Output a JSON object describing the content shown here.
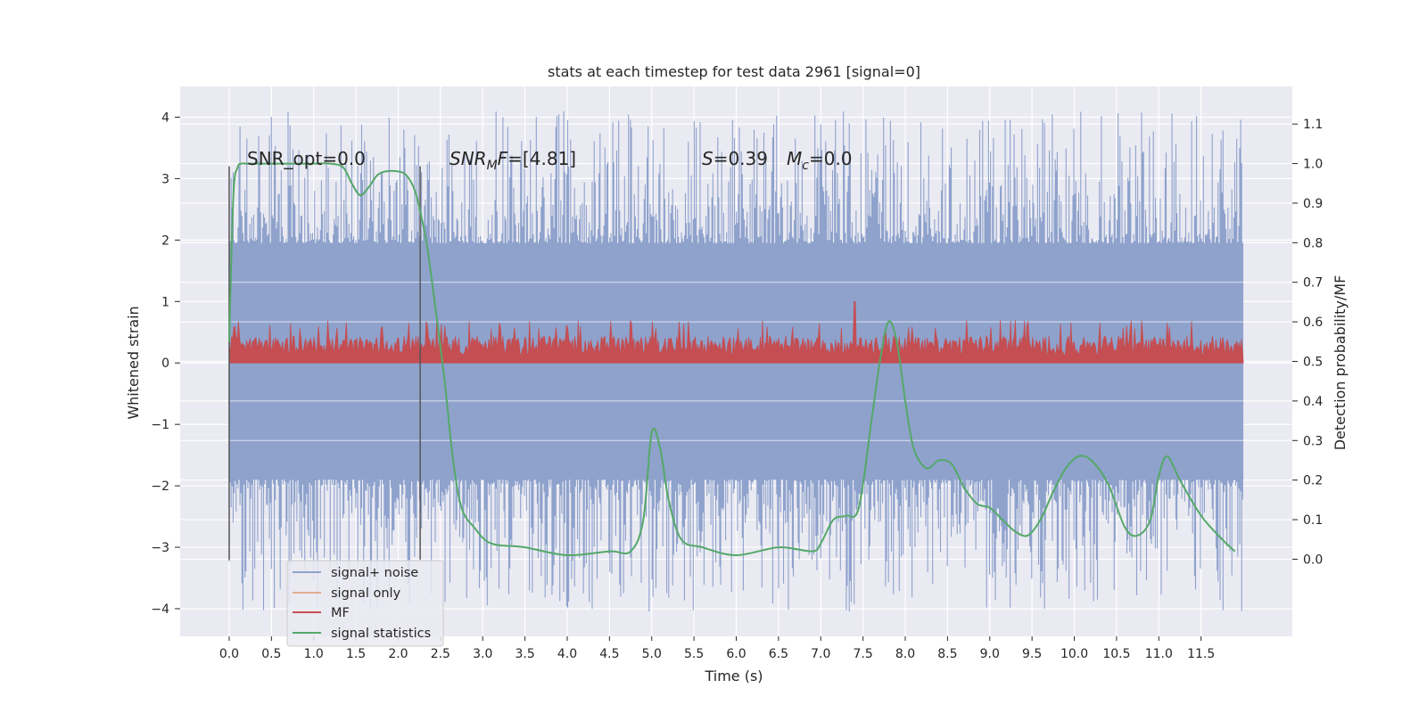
{
  "chart_data": {
    "type": "line",
    "title": "stats at each timestep for test data 2961 [signal=0]",
    "xlabel": "Time (s)",
    "ylabel_left": "Whitened strain",
    "ylabel_right": "Detection probability/MF",
    "xlim": [
      -0.58,
      12.58
    ],
    "ylim_left": [
      -4.45,
      4.5
    ],
    "ylim_right": [
      -0.195,
      1.195
    ],
    "x_ticks": [
      "0.0",
      "0.5",
      "1.0",
      "1.5",
      "2.0",
      "2.5",
      "3.0",
      "3.5",
      "4.0",
      "4.5",
      "5.0",
      "5.5",
      "6.0",
      "6.5",
      "7.0",
      "7.5",
      "8.0",
      "8.5",
      "9.0",
      "9.5",
      "10.0",
      "10.5",
      "11.0",
      "11.5"
    ],
    "y_ticks_left": [
      "−4",
      "−3",
      "−2",
      "−1",
      "0",
      "1",
      "2",
      "3",
      "4"
    ],
    "y_ticks_right": [
      "0.0",
      "0.1",
      "0.2",
      "0.3",
      "0.4",
      "0.5",
      "0.6",
      "0.7",
      "0.8",
      "0.9",
      "1.0",
      "1.1"
    ],
    "grid": true,
    "legend_position": "lower-left",
    "colors": {
      "background": "#eaeaf2",
      "signal_noise": "#8ea2cc",
      "signal_only": "#dd8452",
      "mf": "#c44e52",
      "signal_statistics": "#55a868",
      "markers": "#555555"
    },
    "series": [
      {
        "name": "signal+ noise",
        "axis": "left",
        "x_range": [
          0.0,
          12.0
        ],
        "envelope": {
          "core": [
            -1.9,
            1.95
          ],
          "max": 4.1,
          "min": -4.05
        }
      },
      {
        "name": "signal only",
        "axis": "left",
        "values": []
      },
      {
        "name": "MF",
        "axis": "left",
        "x_range": [
          0.0,
          12.0
        ],
        "envelope": {
          "base": 0.0,
          "typical_top": 0.55,
          "max": 1.0
        }
      },
      {
        "name": "signal statistics",
        "axis": "right",
        "x": [
          0.0,
          0.05,
          0.1,
          0.15,
          0.2,
          0.3,
          0.5,
          0.8,
          1.0,
          1.2,
          1.35,
          1.45,
          1.55,
          1.65,
          1.75,
          1.85,
          2.0,
          2.1,
          2.2,
          2.28,
          2.35,
          2.45,
          2.55,
          2.65,
          2.75,
          2.9,
          3.1,
          3.5,
          4.0,
          4.5,
          4.75,
          4.9,
          5.0,
          5.1,
          5.2,
          5.35,
          5.6,
          6.0,
          6.5,
          6.9,
          7.0,
          7.15,
          7.3,
          7.45,
          7.6,
          7.7,
          7.8,
          7.9,
          8.0,
          8.1,
          8.25,
          8.4,
          8.55,
          8.7,
          8.85,
          9.0,
          9.15,
          9.3,
          9.45,
          9.6,
          9.75,
          9.9,
          10.05,
          10.2,
          10.4,
          10.6,
          10.75,
          10.9,
          11.0,
          11.1,
          11.25,
          11.5,
          11.75,
          11.9
        ],
        "y": [
          0.55,
          0.92,
          0.99,
          1.0,
          1.0,
          1.0,
          1.0,
          1.0,
          1.0,
          1.0,
          0.99,
          0.95,
          0.92,
          0.94,
          0.97,
          0.98,
          0.98,
          0.97,
          0.93,
          0.86,
          0.78,
          0.62,
          0.45,
          0.25,
          0.13,
          0.08,
          0.04,
          0.03,
          0.01,
          0.02,
          0.02,
          0.1,
          0.32,
          0.28,
          0.15,
          0.05,
          0.03,
          0.01,
          0.03,
          0.02,
          0.04,
          0.1,
          0.11,
          0.13,
          0.35,
          0.5,
          0.6,
          0.55,
          0.4,
          0.28,
          0.23,
          0.25,
          0.24,
          0.18,
          0.14,
          0.13,
          0.1,
          0.07,
          0.06,
          0.1,
          0.17,
          0.23,
          0.26,
          0.25,
          0.19,
          0.08,
          0.06,
          0.1,
          0.21,
          0.26,
          0.2,
          0.11,
          0.05,
          0.02
        ]
      }
    ],
    "annotations": [
      {
        "id": "snr-opt",
        "text": "SNR_opt=0.0"
      },
      {
        "id": "snr-mf",
        "prefix": "SNR",
        "subscript": "M",
        "suffix_italic": "F",
        "suffix": "=[4.81]"
      },
      {
        "id": "s-stat",
        "italic": "S",
        "text": "=0.39"
      },
      {
        "id": "mc",
        "italic": "M",
        "subscript": "c",
        "text": "=0.0"
      }
    ],
    "markers_x": [
      0.0,
      2.26
    ]
  }
}
